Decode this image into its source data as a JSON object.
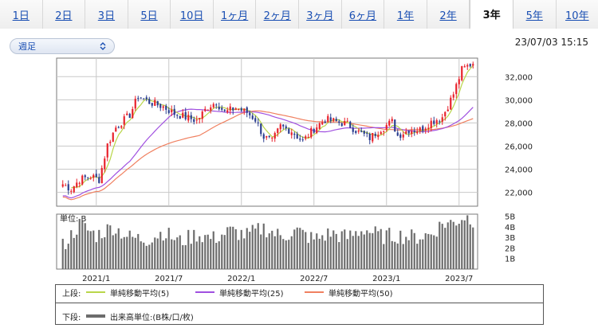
{
  "tabs": [
    {
      "label": "1日",
      "active": false
    },
    {
      "label": "2日",
      "active": false
    },
    {
      "label": "3日",
      "active": false
    },
    {
      "label": "5日",
      "active": false
    },
    {
      "label": "10日",
      "active": false
    },
    {
      "label": "1ヶ月",
      "active": false
    },
    {
      "label": "2ヶ月",
      "active": false
    },
    {
      "label": "3ヶ月",
      "active": false
    },
    {
      "label": "6ヶ月",
      "active": false
    },
    {
      "label": "1年",
      "active": false
    },
    {
      "label": "2年",
      "active": false
    },
    {
      "label": "3年",
      "active": true
    },
    {
      "label": "5年",
      "active": false
    },
    {
      "label": "10年",
      "active": false
    }
  ],
  "period_select": {
    "value": "週足"
  },
  "timestamp": "23/07/03 15:15",
  "colors": {
    "up": "#e8202a",
    "down": "#2a3d8f",
    "ma5": "#b9d64a",
    "ma25": "#a050e0",
    "ma50": "#f08060",
    "volume": "#6c6c6c",
    "grid": "#c8c8c8"
  },
  "volume_unit_label": "単位: B",
  "legend": {
    "upper_label": "上段:",
    "lower_label": "下段:",
    "ma5": "単純移動平均(5)",
    "ma25": "単純移動平均(25)",
    "ma50": "単純移動平均(50)",
    "volume": "出来高単位:(B株/口/枚)"
  },
  "chart_data": {
    "type": "candlestick",
    "x_ticks": [
      "2021/1",
      "2021/7",
      "2022/1",
      "2022/7",
      "2023/1",
      "2023/7"
    ],
    "price_ticks": [
      22000,
      24000,
      26000,
      28000,
      30000,
      32000
    ],
    "price_tick_labels": [
      "22,000",
      "24,000",
      "26,000",
      "28,000",
      "30,000",
      "32,000"
    ],
    "price_range": [
      20800,
      33600
    ],
    "volume_ticks": [
      1,
      2,
      3,
      4,
      5
    ],
    "volume_tick_labels": [
      "1B",
      "2B",
      "3B",
      "4B",
      "5B"
    ],
    "volume_range": [
      0,
      5.2
    ],
    "price_anchors": [
      [
        0,
        22700
      ],
      [
        3,
        22300
      ],
      [
        6,
        23100
      ],
      [
        10,
        23400
      ],
      [
        13,
        23100
      ],
      [
        16,
        26100
      ],
      [
        19,
        27600
      ],
      [
        24,
        28700
      ],
      [
        27,
        30300
      ],
      [
        31,
        29800
      ],
      [
        36,
        29400
      ],
      [
        40,
        28800
      ],
      [
        44,
        28500
      ],
      [
        48,
        28200
      ],
      [
        52,
        29400
      ],
      [
        55,
        29800
      ],
      [
        58,
        28900
      ],
      [
        62,
        29300
      ],
      [
        66,
        28900
      ],
      [
        69,
        28300
      ],
      [
        72,
        26800
      ],
      [
        75,
        26400
      ],
      [
        78,
        27700
      ],
      [
        82,
        27300
      ],
      [
        86,
        26400
      ],
      [
        90,
        27500
      ],
      [
        94,
        28300
      ],
      [
        98,
        28100
      ],
      [
        102,
        27900
      ],
      [
        106,
        27200
      ],
      [
        110,
        26700
      ],
      [
        114,
        27500
      ],
      [
        118,
        28100
      ],
      [
        120,
        26900
      ],
      [
        124,
        27400
      ],
      [
        128,
        27400
      ],
      [
        132,
        28100
      ],
      [
        136,
        28500
      ],
      [
        140,
        30500
      ],
      [
        143,
        32600
      ],
      [
        147,
        33200
      ]
    ],
    "volume_anchors": [
      [
        0,
        2.2
      ],
      [
        6,
        4.2
      ],
      [
        12,
        3.2
      ],
      [
        18,
        4.0
      ],
      [
        24,
        3.0
      ],
      [
        30,
        2.8
      ],
      [
        36,
        3.5
      ],
      [
        42,
        2.6
      ],
      [
        48,
        3.3
      ],
      [
        54,
        2.9
      ],
      [
        60,
        3.6
      ],
      [
        66,
        3.2
      ],
      [
        72,
        3.9
      ],
      [
        78,
        3.1
      ],
      [
        84,
        3.6
      ],
      [
        90,
        2.8
      ],
      [
        96,
        3.4
      ],
      [
        102,
        3.0
      ],
      [
        108,
        3.8
      ],
      [
        114,
        3.1
      ],
      [
        120,
        3.2
      ],
      [
        126,
        3.0
      ],
      [
        132,
        3.3
      ],
      [
        136,
        4.3
      ],
      [
        140,
        4.4
      ],
      [
        144,
        5.0
      ],
      [
        147,
        4.7
      ]
    ]
  }
}
